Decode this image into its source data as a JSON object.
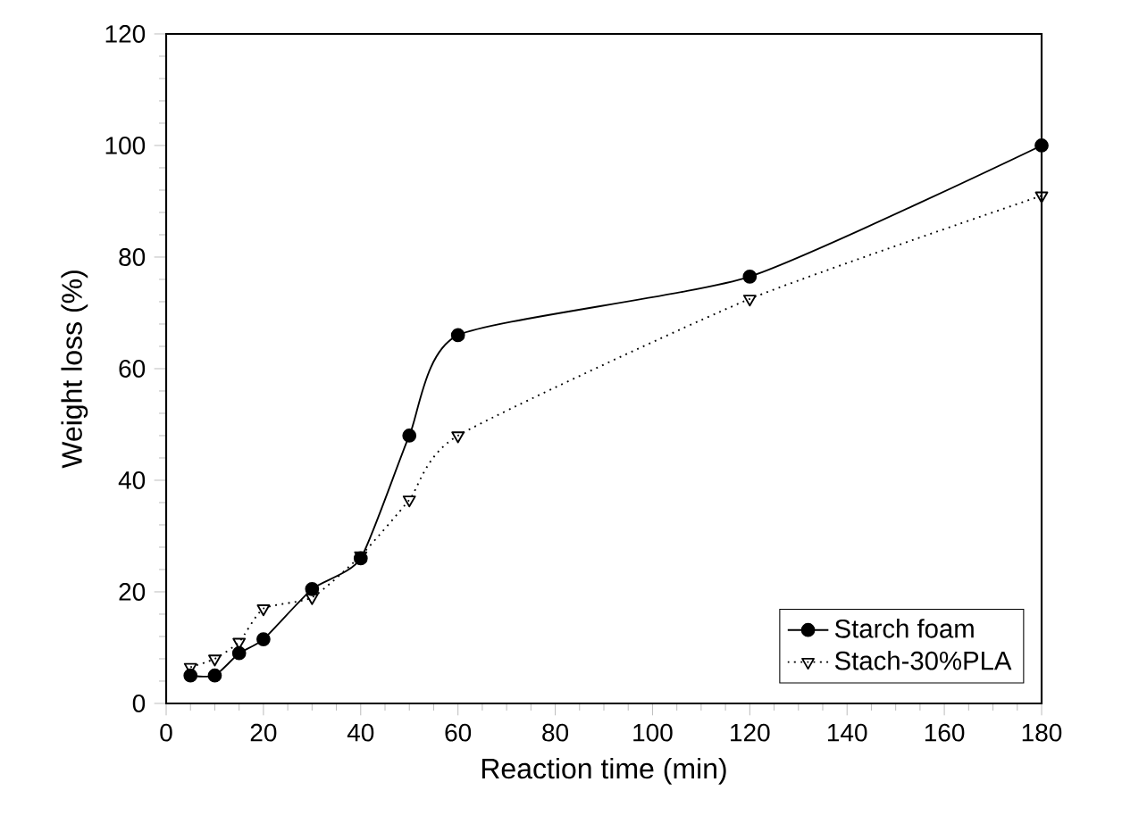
{
  "chart_data": {
    "type": "line",
    "xlabel": "Reaction time (min)",
    "ylabel": "Weight loss (%)",
    "xlim": [
      0,
      180
    ],
    "xticks": [
      0,
      20,
      40,
      60,
      80,
      100,
      120,
      140,
      160,
      180
    ],
    "ylim": [
      0,
      120
    ],
    "yticks": [
      0,
      20,
      40,
      60,
      80,
      100,
      120
    ],
    "grid": false,
    "legend": "bottom right",
    "series": [
      {
        "name": "Starch foam",
        "color": "#000000",
        "marker": "circle",
        "line_style": "solid",
        "x": [
          5,
          10,
          15,
          20,
          30,
          40,
          50,
          60,
          120,
          180
        ],
        "values": [
          5,
          5,
          9,
          11.5,
          20.5,
          26,
          48,
          66,
          76.5,
          100
        ]
      },
      {
        "name": "Stach-30%PLA",
        "color": "#000000",
        "marker": "triangle",
        "line_style": "dotted",
        "x": [
          5,
          10,
          15,
          20,
          30,
          40,
          50,
          60,
          120,
          180
        ],
        "values": [
          6.5,
          8,
          11,
          17,
          19,
          26.5,
          36.5,
          48,
          72.5,
          91
        ]
      }
    ]
  }
}
